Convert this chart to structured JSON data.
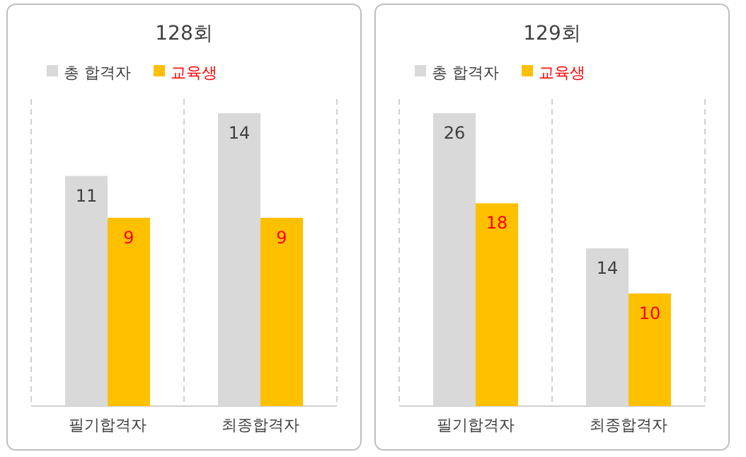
{
  "chart_data": [
    {
      "type": "bar",
      "title": "128회",
      "categories": [
        "필기합격자",
        "최종합격자"
      ],
      "data_labels": true,
      "legend": "top",
      "grid": false,
      "series": [
        {
          "name": "총 합격자",
          "color": "#d9d9d9",
          "values": [
            11,
            14
          ]
        },
        {
          "name": "교육생",
          "color": "#ffc000",
          "values": [
            9,
            9
          ]
        }
      ]
    },
    {
      "type": "bar",
      "title": "129회",
      "categories": [
        "필기합격자",
        "최종합격자"
      ],
      "data_labels": true,
      "legend": "top",
      "grid": false,
      "series": [
        {
          "name": "총 합격자",
          "color": "#d9d9d9",
          "values": [
            26,
            14
          ]
        },
        {
          "name": "교육생",
          "color": "#ffc000",
          "values": [
            18,
            10
          ]
        }
      ]
    }
  ]
}
